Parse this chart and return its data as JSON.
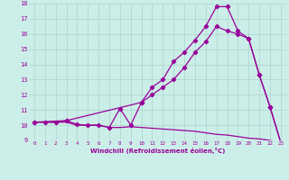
{
  "xlabel": "Windchill (Refroidissement éolien,°C)",
  "background_color": "#cceee8",
  "grid_color": "#aad4ce",
  "line_color": "#990099",
  "xlim": [
    -0.5,
    23.5
  ],
  "ylim": [
    9,
    18
  ],
  "xticks": [
    0,
    1,
    2,
    3,
    4,
    5,
    6,
    7,
    8,
    9,
    10,
    11,
    12,
    13,
    14,
    15,
    16,
    17,
    18,
    19,
    20,
    21,
    22,
    23
  ],
  "yticks": [
    9,
    10,
    11,
    12,
    13,
    14,
    15,
    16,
    17,
    18
  ],
  "line1_x": [
    0,
    1,
    2,
    3,
    4,
    5,
    6,
    7,
    8,
    9,
    10,
    11,
    12,
    13,
    14,
    15,
    16,
    17,
    18,
    19,
    20,
    21,
    22,
    23
  ],
  "line1_y": [
    10.2,
    10.2,
    10.2,
    10.2,
    10.0,
    10.0,
    10.0,
    9.85,
    9.85,
    9.9,
    9.85,
    9.8,
    9.75,
    9.7,
    9.65,
    9.6,
    9.5,
    9.4,
    9.35,
    9.25,
    9.15,
    9.1,
    9.0,
    8.85
  ],
  "line2_x": [
    0,
    1,
    2,
    3,
    4,
    5,
    6,
    7,
    8,
    9,
    10,
    11,
    12,
    13,
    14,
    15,
    16,
    17,
    18,
    19,
    20,
    21,
    22,
    23
  ],
  "line2_y": [
    10.2,
    10.2,
    10.2,
    10.3,
    10.05,
    10.0,
    10.0,
    9.85,
    11.1,
    10.0,
    11.5,
    12.5,
    13.0,
    14.2,
    14.8,
    15.6,
    16.5,
    17.8,
    17.8,
    16.2,
    15.7,
    13.3,
    11.2,
    8.85
  ],
  "line3_x": [
    0,
    3,
    10,
    11,
    12,
    13,
    14,
    15,
    16,
    17,
    18,
    19,
    20,
    21,
    22,
    23
  ],
  "line3_y": [
    10.2,
    10.3,
    11.5,
    12.0,
    12.5,
    13.0,
    13.8,
    14.8,
    15.5,
    16.5,
    16.2,
    16.0,
    15.7,
    13.3,
    11.2,
    8.85
  ]
}
